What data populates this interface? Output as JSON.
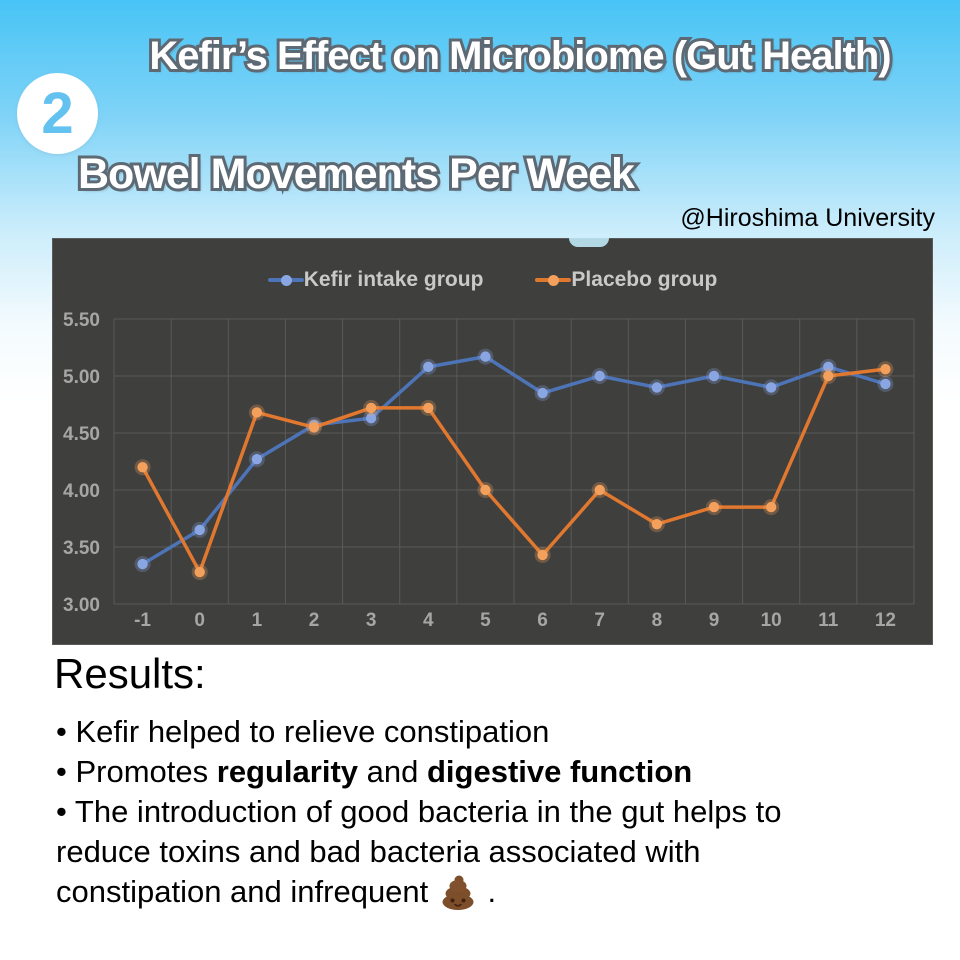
{
  "page": {
    "badge_number": "2",
    "title": "Kefir’s Effect on Microbiome (Gut Health)",
    "subtitle": "Bowel Movements Per Week",
    "attribution": "@Hiroshima University"
  },
  "chart_data": {
    "type": "line",
    "title": "",
    "xlabel": "",
    "ylabel": "",
    "categories": [
      "-1",
      "0",
      "1",
      "2",
      "3",
      "4",
      "5",
      "6",
      "7",
      "8",
      "9",
      "10",
      "11",
      "12"
    ],
    "series": [
      {
        "name": "Kefir intake group",
        "color": "#4e74b8",
        "dot_color": "#8aa6e2",
        "values": [
          3.35,
          3.65,
          4.27,
          4.57,
          4.63,
          5.08,
          5.17,
          4.85,
          5.0,
          4.9,
          5.0,
          4.9,
          5.08,
          4.93
        ]
      },
      {
        "name": "Placebo group",
        "color": "#e1782f",
        "dot_color": "#f2a05c",
        "values": [
          4.2,
          3.28,
          4.68,
          4.55,
          4.72,
          4.72,
          4.0,
          3.43,
          4.0,
          3.7,
          3.85,
          3.85,
          5.0,
          5.06
        ]
      }
    ],
    "ylim": [
      3.0,
      5.5
    ],
    "yticks": [
      3.0,
      3.5,
      4.0,
      4.5,
      5.0,
      5.5
    ],
    "grid": true,
    "legend_position": "top",
    "panel_bg": "#3f3f3e",
    "grid_color": "#5a5a58",
    "tick_color": "#a6a6a4"
  },
  "results": {
    "heading": "Results:",
    "bullets": [
      [
        {
          "text": "• Kefir helped to relieve constipation"
        }
      ],
      [
        {
          "text": "• Promotes "
        },
        {
          "text": "regularity",
          "bold": true
        },
        {
          "text": " and "
        },
        {
          "text": "digestive function",
          "bold": true
        }
      ],
      [
        {
          "text": "• The introduction of good bacteria in the gut helps to"
        },
        {
          "br": true
        },
        {
          "text": "reduce toxins and bad bacteria associated with"
        },
        {
          "br": true
        },
        {
          "text": "constipation and infrequent "
        },
        {
          "icon": "poop"
        },
        {
          "text": " ."
        }
      ]
    ]
  }
}
